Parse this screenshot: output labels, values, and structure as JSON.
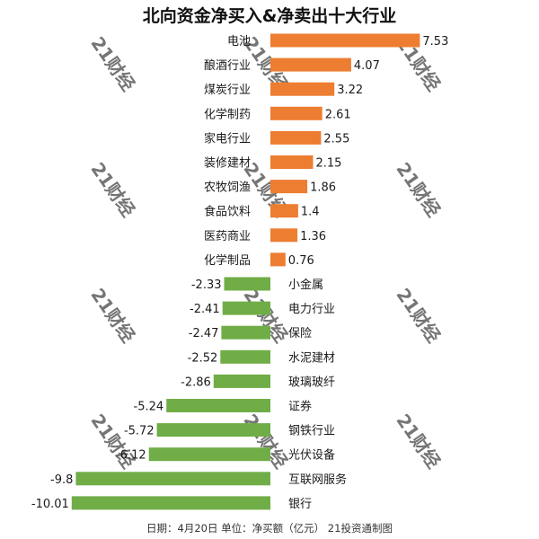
{
  "footer": "日期：4月20日 单位：净买额（亿元） 21投资通制图",
  "watermark": "21财经",
  "chart_data": {
    "type": "bar",
    "orientation": "horizontal",
    "title": "北向资金净买入&净卖出十大行业",
    "xlabel": "",
    "ylabel": "",
    "categories": [
      "电池",
      "酿酒行业",
      "煤炭行业",
      "化学制药",
      "家电行业",
      "装修建材",
      "农牧饲渔",
      "食品饮料",
      "医药商业",
      "化学制品",
      "小金属",
      "电力行业",
      "保险",
      "水泥建材",
      "玻璃玻纤",
      "证券",
      "钢铁行业",
      "光伏设备",
      "互联网服务",
      "银行"
    ],
    "values": [
      7.53,
      4.07,
      3.22,
      2.61,
      2.55,
      2.15,
      1.86,
      1.4,
      1.36,
      0.76,
      -2.33,
      -2.41,
      -2.47,
      -2.52,
      -2.86,
      -5.24,
      -5.72,
      -6.12,
      -9.8,
      -10.01
    ],
    "value_labels": [
      "7.53",
      "4.07",
      "3.22",
      "2.61",
      "2.55",
      "2.15",
      "1.86",
      "1.4",
      "1.36",
      "0.76",
      "-2.33",
      "-2.41",
      "-2.47",
      "-2.52",
      "-2.86",
      "-5.24",
      "-5.72",
      "-6.12",
      "-9.8",
      "-10.01"
    ],
    "colors": {
      "positive": "#ED7D31",
      "negative": "#70AD47"
    },
    "grid": false,
    "legend": "none"
  }
}
